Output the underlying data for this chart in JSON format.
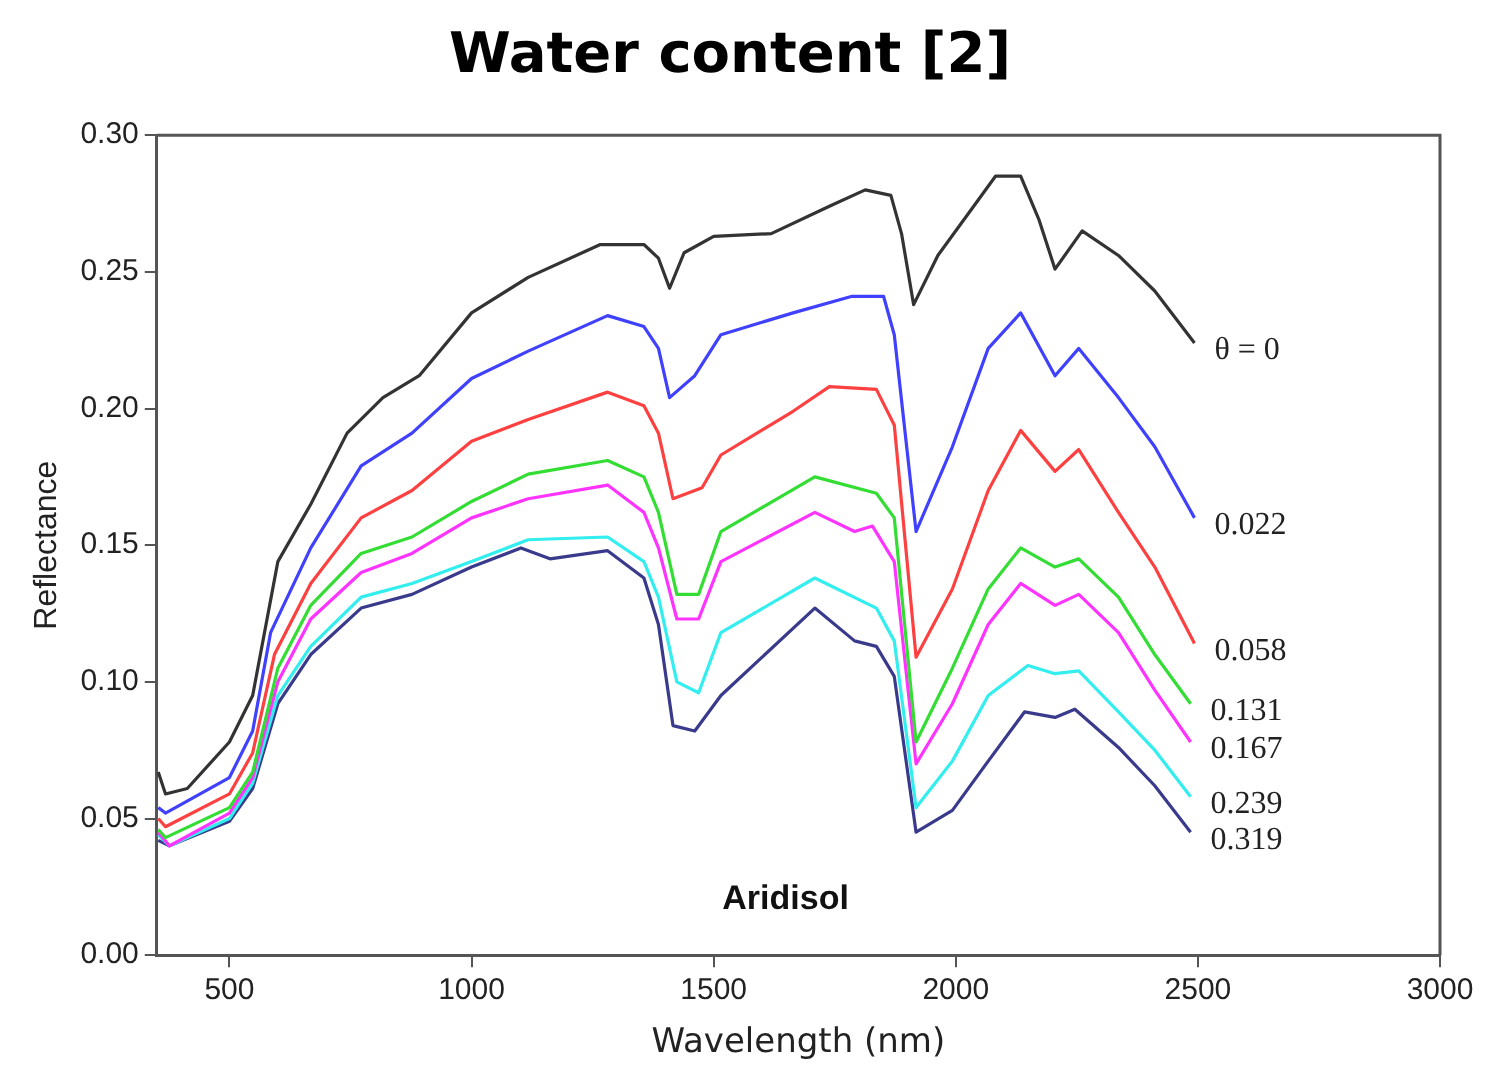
{
  "chart_data": {
    "type": "line",
    "title": "Water content [2]",
    "xlabel": "Wavelength (nm)",
    "ylabel": "Reflectance",
    "annotations": [
      "Aridisol"
    ],
    "xlim": [
      350,
      3000
    ],
    "xticks": [
      500,
      1000,
      1500,
      2000,
      2500,
      3000
    ],
    "ylim": [
      0,
      0.3
    ],
    "yticks": [
      {
        "value": 0,
        "label": "0.00"
      },
      {
        "value": 0.05,
        "label": "0.05"
      },
      {
        "value": 0.1,
        "label": "0.10"
      },
      {
        "value": 0.15,
        "label": "0.15"
      },
      {
        "value": 0.2,
        "label": "0.20"
      },
      {
        "value": 0.25,
        "label": "0.25"
      },
      {
        "value": 0.3,
        "label": "0.30"
      }
    ],
    "grid": false,
    "legend": false,
    "marker": "none",
    "line_style": "solid",
    "series": [
      {
        "name": "θ = 0",
        "color": "#333333",
        "x": [
          353,
          368,
          413,
          500,
          548,
          600,
          668,
          743,
          817,
          892,
          1000,
          1117,
          1266,
          1356,
          1386,
          1409,
          1439,
          1500,
          1619,
          1739,
          1813,
          1866,
          1888,
          1913,
          1963,
          2037,
          2082,
          2134,
          2172,
          2205,
          2261,
          2336,
          2411,
          2493
        ],
        "values": [
          0.067,
          0.059,
          0.061,
          0.078,
          0.095,
          0.144,
          0.165,
          0.191,
          0.204,
          0.212,
          0.235,
          0.248,
          0.26,
          0.26,
          0.255,
          0.244,
          0.257,
          0.263,
          0.264,
          0.274,
          0.28,
          0.278,
          0.264,
          0.238,
          0.256,
          0.274,
          0.285,
          0.285,
          0.269,
          0.251,
          0.265,
          0.256,
          0.243,
          0.224
        ]
      },
      {
        "name": "0.022",
        "color": "#4040ff",
        "x": [
          353,
          368,
          500,
          548,
          585,
          668,
          772,
          877,
          1000,
          1117,
          1281,
          1356,
          1386,
          1409,
          1461,
          1515,
          1664,
          1784,
          1851,
          1873,
          1918,
          1993,
          2067,
          2134,
          2205,
          2254,
          2336,
          2411,
          2493
        ],
        "values": [
          0.054,
          0.052,
          0.065,
          0.082,
          0.118,
          0.149,
          0.179,
          0.191,
          0.211,
          0.221,
          0.234,
          0.23,
          0.222,
          0.204,
          0.212,
          0.227,
          0.235,
          0.241,
          0.241,
          0.227,
          0.155,
          0.186,
          0.222,
          0.235,
          0.212,
          0.222,
          0.204,
          0.186,
          0.16
        ]
      },
      {
        "name": "0.058",
        "color": "#ff4040",
        "x": [
          353,
          368,
          500,
          548,
          593,
          668,
          772,
          877,
          1000,
          1117,
          1281,
          1356,
          1386,
          1416,
          1476,
          1515,
          1664,
          1739,
          1836,
          1873,
          1918,
          1993,
          2067,
          2134,
          2205,
          2254,
          2336,
          2411,
          2493
        ],
        "values": [
          0.05,
          0.047,
          0.059,
          0.074,
          0.11,
          0.136,
          0.16,
          0.17,
          0.188,
          0.196,
          0.206,
          0.201,
          0.191,
          0.167,
          0.171,
          0.183,
          0.199,
          0.208,
          0.207,
          0.194,
          0.109,
          0.134,
          0.17,
          0.192,
          0.177,
          0.185,
          0.162,
          0.142,
          0.114
        ]
      },
      {
        "name": "0.131",
        "color": "#33dd33",
        "x": [
          353,
          368,
          500,
          548,
          600,
          668,
          772,
          877,
          1000,
          1117,
          1281,
          1356,
          1386,
          1424,
          1469,
          1515,
          1709,
          1836,
          1873,
          1918,
          1993,
          2067,
          2134,
          2205,
          2254,
          2336,
          2411,
          2485
        ],
        "values": [
          0.046,
          0.043,
          0.054,
          0.067,
          0.105,
          0.128,
          0.147,
          0.153,
          0.166,
          0.176,
          0.181,
          0.175,
          0.162,
          0.132,
          0.132,
          0.155,
          0.175,
          0.169,
          0.16,
          0.078,
          0.105,
          0.134,
          0.149,
          0.142,
          0.145,
          0.131,
          0.11,
          0.092
        ]
      },
      {
        "name": "0.167",
        "color": "#ff33ff",
        "x": [
          353,
          376,
          500,
          548,
          600,
          668,
          772,
          877,
          1000,
          1117,
          1281,
          1356,
          1386,
          1424,
          1469,
          1515,
          1709,
          1791,
          1828,
          1873,
          1918,
          1993,
          2067,
          2134,
          2205,
          2254,
          2336,
          2411,
          2485
        ],
        "values": [
          0.045,
          0.04,
          0.052,
          0.065,
          0.1,
          0.123,
          0.14,
          0.147,
          0.16,
          0.167,
          0.172,
          0.162,
          0.149,
          0.123,
          0.123,
          0.144,
          0.162,
          0.155,
          0.157,
          0.144,
          0.07,
          0.092,
          0.121,
          0.136,
          0.128,
          0.132,
          0.118,
          0.097,
          0.078
        ]
      },
      {
        "name": "0.239",
        "color": "#33eeee",
        "x": [
          353,
          376,
          500,
          548,
          600,
          668,
          772,
          877,
          1000,
          1117,
          1281,
          1356,
          1386,
          1424,
          1469,
          1515,
          1709,
          1836,
          1873,
          1918,
          1993,
          2067,
          2149,
          2205,
          2254,
          2336,
          2411,
          2485
        ],
        "values": [
          0.044,
          0.04,
          0.05,
          0.063,
          0.095,
          0.113,
          0.131,
          0.136,
          0.144,
          0.152,
          0.153,
          0.144,
          0.131,
          0.1,
          0.096,
          0.118,
          0.138,
          0.127,
          0.115,
          0.054,
          0.071,
          0.095,
          0.106,
          0.103,
          0.104,
          0.089,
          0.075,
          0.058
        ]
      },
      {
        "name": "0.319",
        "color": "#3a3a8c",
        "x": [
          353,
          376,
          500,
          548,
          600,
          668,
          772,
          877,
          1000,
          1102,
          1162,
          1281,
          1356,
          1386,
          1416,
          1461,
          1515,
          1709,
          1791,
          1836,
          1873,
          1918,
          1993,
          2067,
          2142,
          2205,
          2246,
          2336,
          2411,
          2485
        ],
        "values": [
          0.042,
          0.04,
          0.049,
          0.061,
          0.092,
          0.11,
          0.127,
          0.132,
          0.142,
          0.149,
          0.145,
          0.148,
          0.138,
          0.121,
          0.084,
          0.082,
          0.095,
          0.127,
          0.115,
          0.113,
          0.102,
          0.045,
          0.053,
          0.071,
          0.089,
          0.087,
          0.09,
          0.076,
          0.062,
          0.045
        ]
      }
    ]
  }
}
